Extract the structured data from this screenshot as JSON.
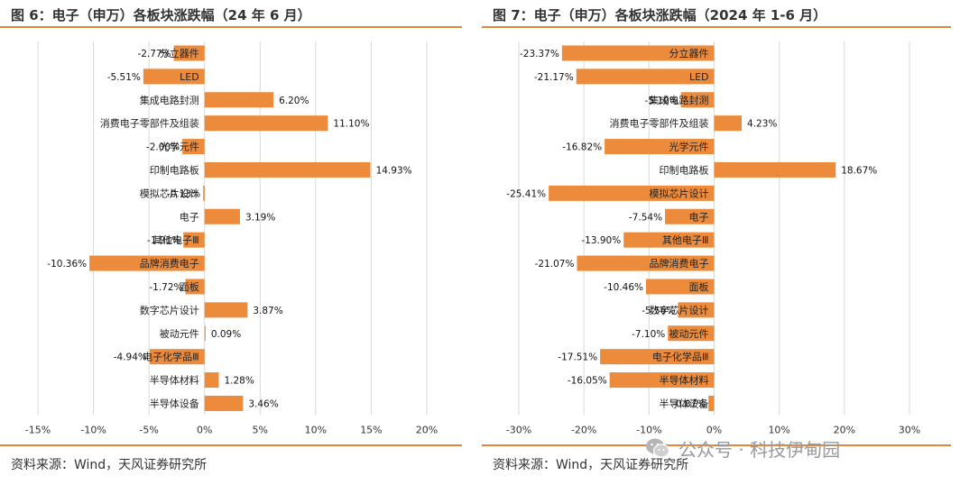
{
  "left": {
    "title": "图 6：电子（申万）各板块涨跌幅（24 年 6 月）",
    "source": "资料来源：Wind，天风证券研究所"
  },
  "right": {
    "title": "图 7：电子（申万）各板块涨跌幅（2024 年 1-6 月）",
    "source": "资料来源：Wind，天风证券研究所"
  },
  "watermark": {
    "text": "公众号 · 科技伊甸园",
    "icon": "wechat-icon"
  },
  "colors": {
    "bar": "#ED8B3C",
    "rule": "#E0873C",
    "grid": "#d9d9d9"
  },
  "chart_data": [
    {
      "type": "bar",
      "orientation": "horizontal",
      "categories": [
        "分立器件",
        "LED",
        "集成电路封测",
        "消费电子零部件及组装",
        "光学元件",
        "印制电路板",
        "模拟芯片设计",
        "电子",
        "其他电子Ⅲ",
        "品牌消费电子",
        "面板",
        "数字芯片设计",
        "被动元件",
        "电子化学品Ⅲ",
        "半导体材料",
        "半导体设备"
      ],
      "values": [
        -2.77,
        -5.51,
        6.2,
        11.1,
        -2.0,
        14.93,
        -0.13,
        3.19,
        -1.91,
        -10.36,
        -1.72,
        3.87,
        0.09,
        -4.94,
        1.28,
        3.46
      ],
      "data_labels": [
        "-2.77%",
        "-5.51%",
        "6.20%",
        "11.10%",
        "-2.00%",
        "14.93%",
        "-0.13%",
        "3.19%",
        "-1.91%",
        "-10.36%",
        "-1.72%",
        "3.87%",
        "0.09%",
        "-4.94%",
        "1.28%",
        "3.46%"
      ],
      "xlim": [
        -15,
        20
      ],
      "xticks": [
        -15,
        -10,
        -5,
        0,
        5,
        10,
        15,
        20
      ],
      "xtick_labels": [
        "-15%",
        "-10%",
        "-5%",
        "0%",
        "5%",
        "10%",
        "15%",
        "20%"
      ],
      "grid": true
    },
    {
      "type": "bar",
      "orientation": "horizontal",
      "categories": [
        "分立器件",
        "LED",
        "集成电路封测",
        "消费电子零部件及组装",
        "光学元件",
        "印制电路板",
        "模拟芯片设计",
        "电子",
        "其他电子Ⅲ",
        "品牌消费电子",
        "面板",
        "数字芯片设计",
        "被动元件",
        "电子化学品Ⅲ",
        "半导体材料",
        "半导体设备"
      ],
      "values": [
        -23.37,
        -21.17,
        -5.1,
        4.23,
        -16.82,
        18.67,
        -25.41,
        -7.54,
        -13.9,
        -21.07,
        -10.46,
        -5.56,
        -7.1,
        -17.51,
        -16.05,
        -0.87
      ],
      "data_labels": [
        "-23.37%",
        "-21.17%",
        "-5.10%",
        "4.23%",
        "-16.82%",
        "18.67%",
        "-25.41%",
        "-7.54%",
        "-13.90%",
        "-21.07%",
        "-10.46%",
        "-5.56%",
        "-7.10%",
        "-17.51%",
        "-16.05%",
        "-0.87%"
      ],
      "xlim": [
        -30,
        30
      ],
      "xticks": [
        -30,
        -20,
        -10,
        0,
        10,
        20,
        30
      ],
      "xtick_labels": [
        "-30%",
        "-20%",
        "-10%",
        "0%",
        "10%",
        "20%",
        "30%"
      ],
      "grid": true
    }
  ]
}
